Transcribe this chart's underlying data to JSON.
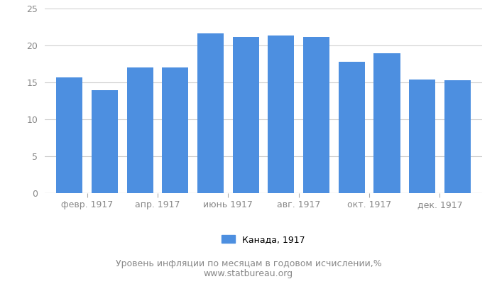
{
  "values": [
    15.7,
    13.9,
    17.0,
    17.0,
    21.6,
    21.2,
    21.3,
    21.2,
    17.8,
    18.9,
    15.4,
    15.3
  ],
  "x_tick_labels": [
    "февр. 1917",
    "апр. 1917",
    "июнь 1917",
    "авг. 1917",
    "окт. 1917",
    "дек. 1917"
  ],
  "x_tick_positions": [
    1,
    3,
    5,
    7,
    9,
    11
  ],
  "bar_color": "#4d8fe0",
  "ylim": [
    0,
    25
  ],
  "yticks": [
    0,
    5,
    10,
    15,
    20,
    25
  ],
  "legend_label": "Канада, 1917",
  "footer_line1": "Уровень инфляции по месяцам в годовом исчислении,%",
  "footer_line2": "www.statbureau.org",
  "background_color": "#ffffff",
  "grid_color": "#d0d0d0",
  "tick_color": "#888888",
  "footer_fontsize": 9,
  "legend_fontsize": 9,
  "tick_fontsize": 9
}
